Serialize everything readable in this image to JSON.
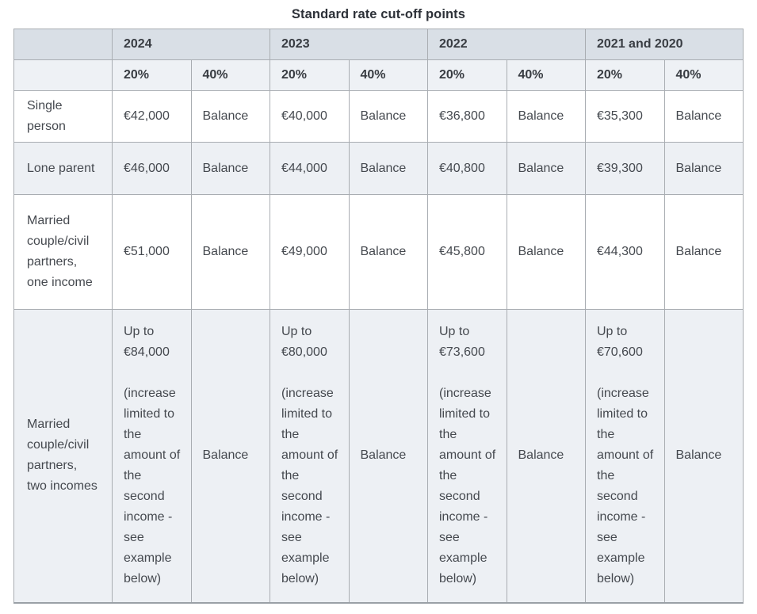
{
  "title": "Standard rate cut-off points",
  "colors": {
    "year_header_bg": "#d9dfe6",
    "rate_header_bg": "#eef1f5",
    "alt_row_bg": "#edf0f4",
    "row_bg": "#ffffff",
    "border": "#a9adb2",
    "header_text": "#383c42",
    "body_text": "#45494f"
  },
  "table": {
    "corner": "",
    "year_headers": [
      "2024",
      "2023",
      "2022",
      "2021 and 2020"
    ],
    "rate_headers": [
      "20%",
      "40%",
      "20%",
      "40%",
      "20%",
      "40%",
      "20%",
      "40%"
    ],
    "rows": [
      {
        "label": "Single person",
        "cells": [
          "€42,000",
          "Balance",
          "€40,000",
          "Balance",
          "€36,800",
          "Balance",
          "€35,300",
          "Balance"
        ]
      },
      {
        "label": "Lone parent",
        "cells": [
          "€46,000",
          "Balance",
          "€44,000",
          "Balance",
          "€40,800",
          "Balance",
          "€39,300",
          "Balance"
        ]
      },
      {
        "label": "Married couple/civil partners, one income",
        "cells": [
          "€51,000",
          "Balance",
          "€49,000",
          "Balance",
          "€45,800",
          "Balance",
          "€44,300",
          "Balance"
        ]
      },
      {
        "label": "Married couple/civil partners, two incomes",
        "cells": [
          "Up to €84,000\n\n(increase limited to the amount of the second income - see example below)",
          "Balance",
          "Up to €80,000\n\n(increase limited to the amount of the second income - see example below)",
          "Balance",
          "Up to €73,600\n\n(increase limited to the amount of the second income - see example below)",
          "Balance",
          "Up to €70,600\n\n(increase limited to the amount of the second income - see example below)",
          "Balance"
        ]
      }
    ]
  }
}
